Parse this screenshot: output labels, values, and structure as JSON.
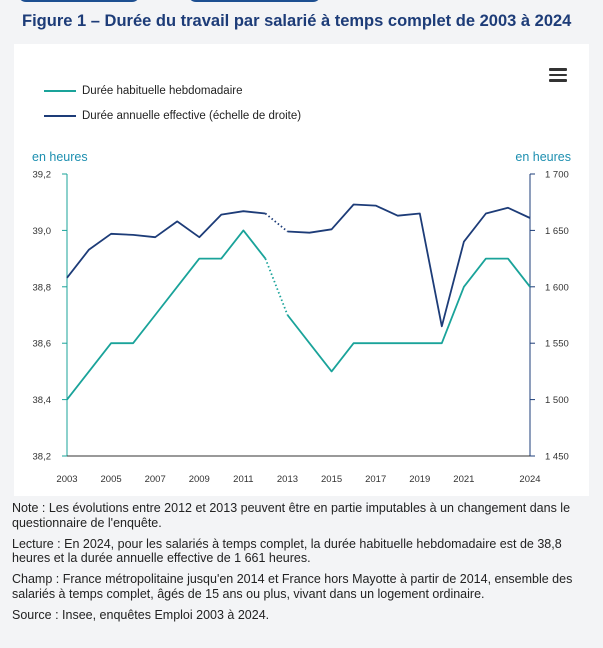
{
  "figure_title": "Figure 1 – Durée du travail par salarié à temps complet de 2003 à 2024",
  "menu_icon": "hamburger-menu-icon",
  "colors": {
    "left_series": "#1aa39a",
    "right_series": "#1d3c78",
    "unit_label": "#1d8fb0",
    "title": "#1d3c78"
  },
  "chart_data": {
    "type": "line",
    "title": "Figure 1 – Durée du travail par salarié à temps complet de 2003 à 2024",
    "x": [
      2003,
      2004,
      2005,
      2006,
      2007,
      2008,
      2009,
      2010,
      2011,
      2012,
      2013,
      2014,
      2015,
      2016,
      2017,
      2018,
      2019,
      2020,
      2021,
      2022,
      2023,
      2024
    ],
    "x_tick_labels": [
      "2003",
      "2005",
      "2007",
      "2009",
      "2011",
      "2013",
      "2015",
      "2017",
      "2019",
      "2021",
      "2024"
    ],
    "y_left": {
      "label": "en heures",
      "range": [
        38.2,
        39.2
      ],
      "ticks": [
        "38,2",
        "38,4",
        "38,6",
        "38,8",
        "39,0",
        "39,2"
      ]
    },
    "y_right": {
      "label": "en heures",
      "range": [
        1450,
        1700
      ],
      "ticks": [
        "1 450",
        "1 500",
        "1 550",
        "1 600",
        "1 650",
        "1 700"
      ]
    },
    "series": [
      {
        "name": "Durée habituelle hebdomadaire",
        "axis": "left",
        "values": [
          38.4,
          38.5,
          38.6,
          38.6,
          38.7,
          38.8,
          38.9,
          38.9,
          39.0,
          38.9,
          38.7,
          38.6,
          38.5,
          38.6,
          38.6,
          38.6,
          38.6,
          38.6,
          38.8,
          38.9,
          38.9,
          38.8
        ]
      },
      {
        "name": "Durée annuelle effective (échelle de droite)",
        "axis": "right",
        "values": [
          1608,
          1633,
          1647,
          1646,
          1644,
          1658,
          1644,
          1664,
          1667,
          1665,
          1649,
          1648,
          1651,
          1673,
          1672,
          1663,
          1665,
          1565,
          1640,
          1665,
          1670,
          1661
        ]
      }
    ],
    "break_between": [
      2012,
      2013
    ],
    "grid": false,
    "legend_position": "top-left"
  },
  "notes": [
    "Note : Les évolutions entre 2012 et 2013 peuvent être en partie imputables à un changement dans le questionnaire de l'enquête.",
    "Lecture : En 2024, pour les salariés à temps complet, la durée habituelle hebdomadaire est de 38,8 heures et la durée annuelle effective de 1 661 heures.",
    "Champ : France métropolitaine jusqu'en 2014 et France hors Mayotte à partir de 2014, ensemble des salariés à temps complet, âgés de 15 ans ou plus, vivant dans un logement ordinaire.",
    "Source : Insee, enquêtes Emploi 2003 à 2024."
  ]
}
